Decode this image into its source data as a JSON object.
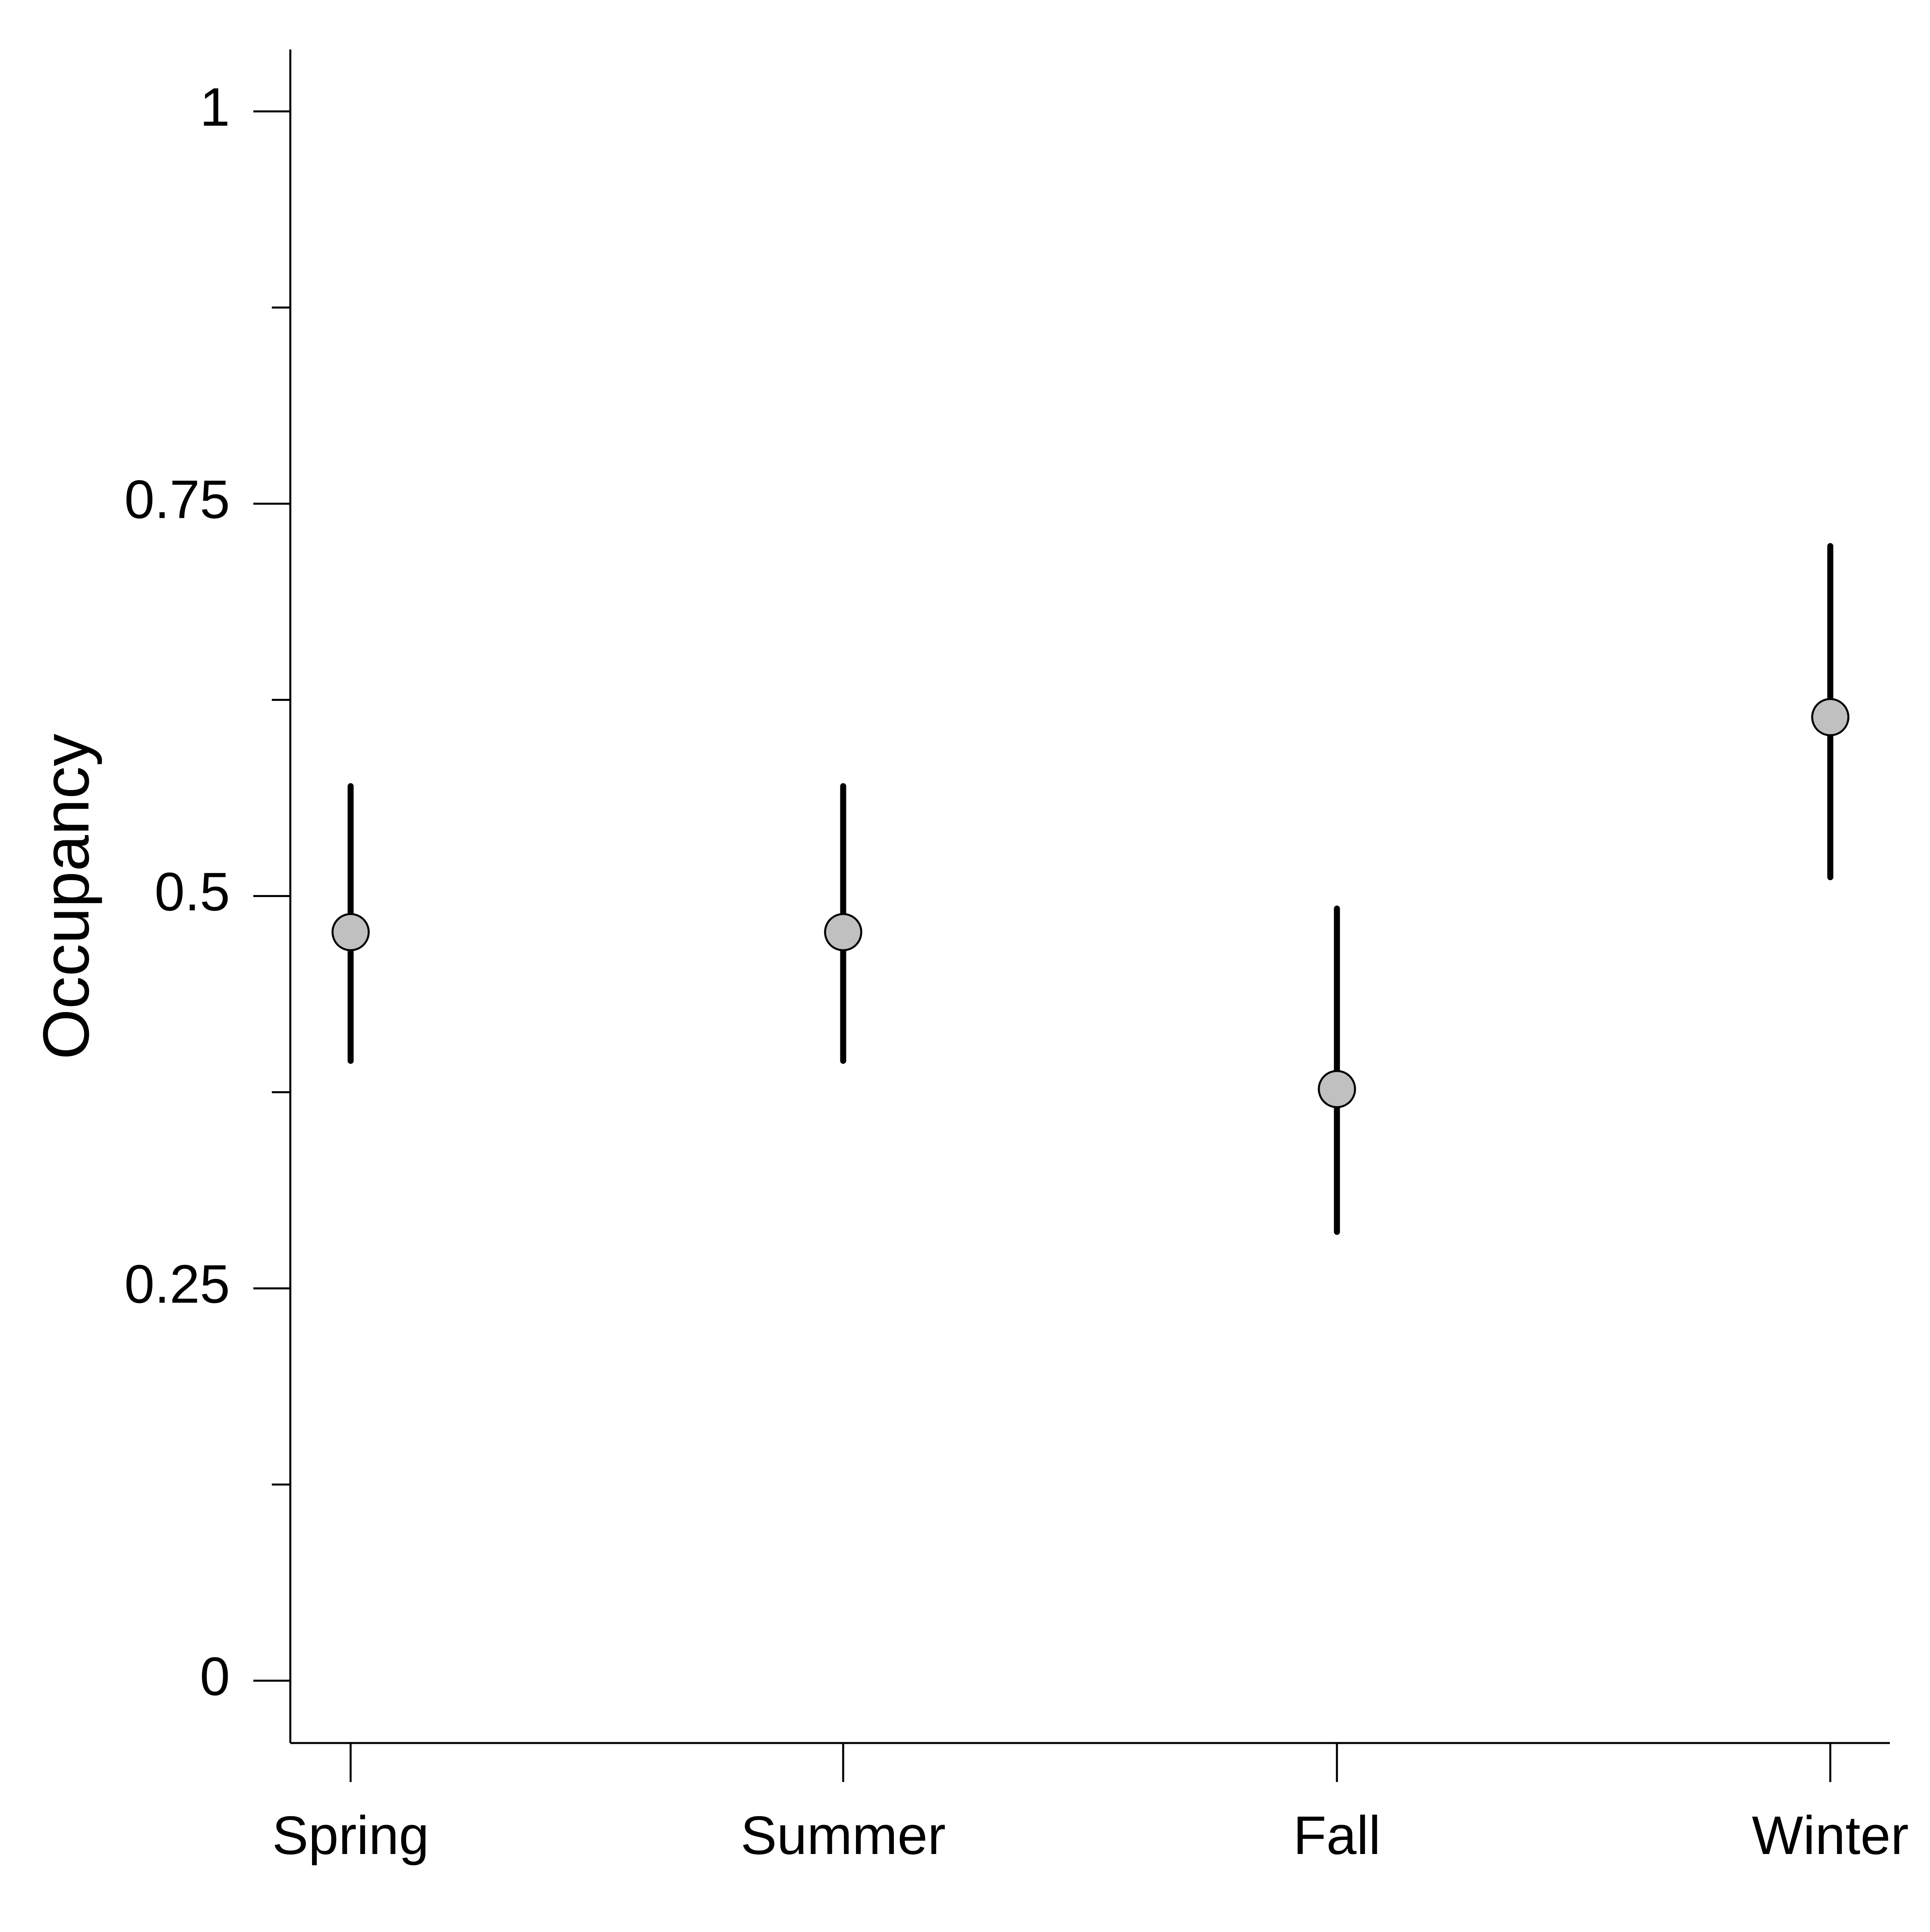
{
  "chart_data": {
    "type": "scatter",
    "ylabel": "Occupancy",
    "xlabel": "",
    "categories": [
      "Spring",
      "Summer",
      "Fall",
      "Winter"
    ],
    "series": [
      {
        "values": [
          0.477,
          0.477,
          0.377,
          0.614
        ],
        "lower": [
          0.395,
          0.395,
          0.286,
          0.512
        ],
        "upper": [
          0.57,
          0.57,
          0.492,
          0.723
        ]
      }
    ],
    "ylim": [
      -0.04,
      1.04
    ],
    "yticks": [
      0,
      0.25,
      0.5,
      0.75,
      1
    ],
    "ytick_labels": [
      "0",
      "0.25",
      "0.5",
      "0.75",
      "1"
    ],
    "yminor_ticks": [
      0.125,
      0.375,
      0.625,
      0.875
    ],
    "grid": false,
    "legend": "none",
    "colors": {
      "marker_fill": "#c0c0c0",
      "marker_stroke": "#000000",
      "errorbar": "#000000",
      "axis": "#000000"
    }
  }
}
